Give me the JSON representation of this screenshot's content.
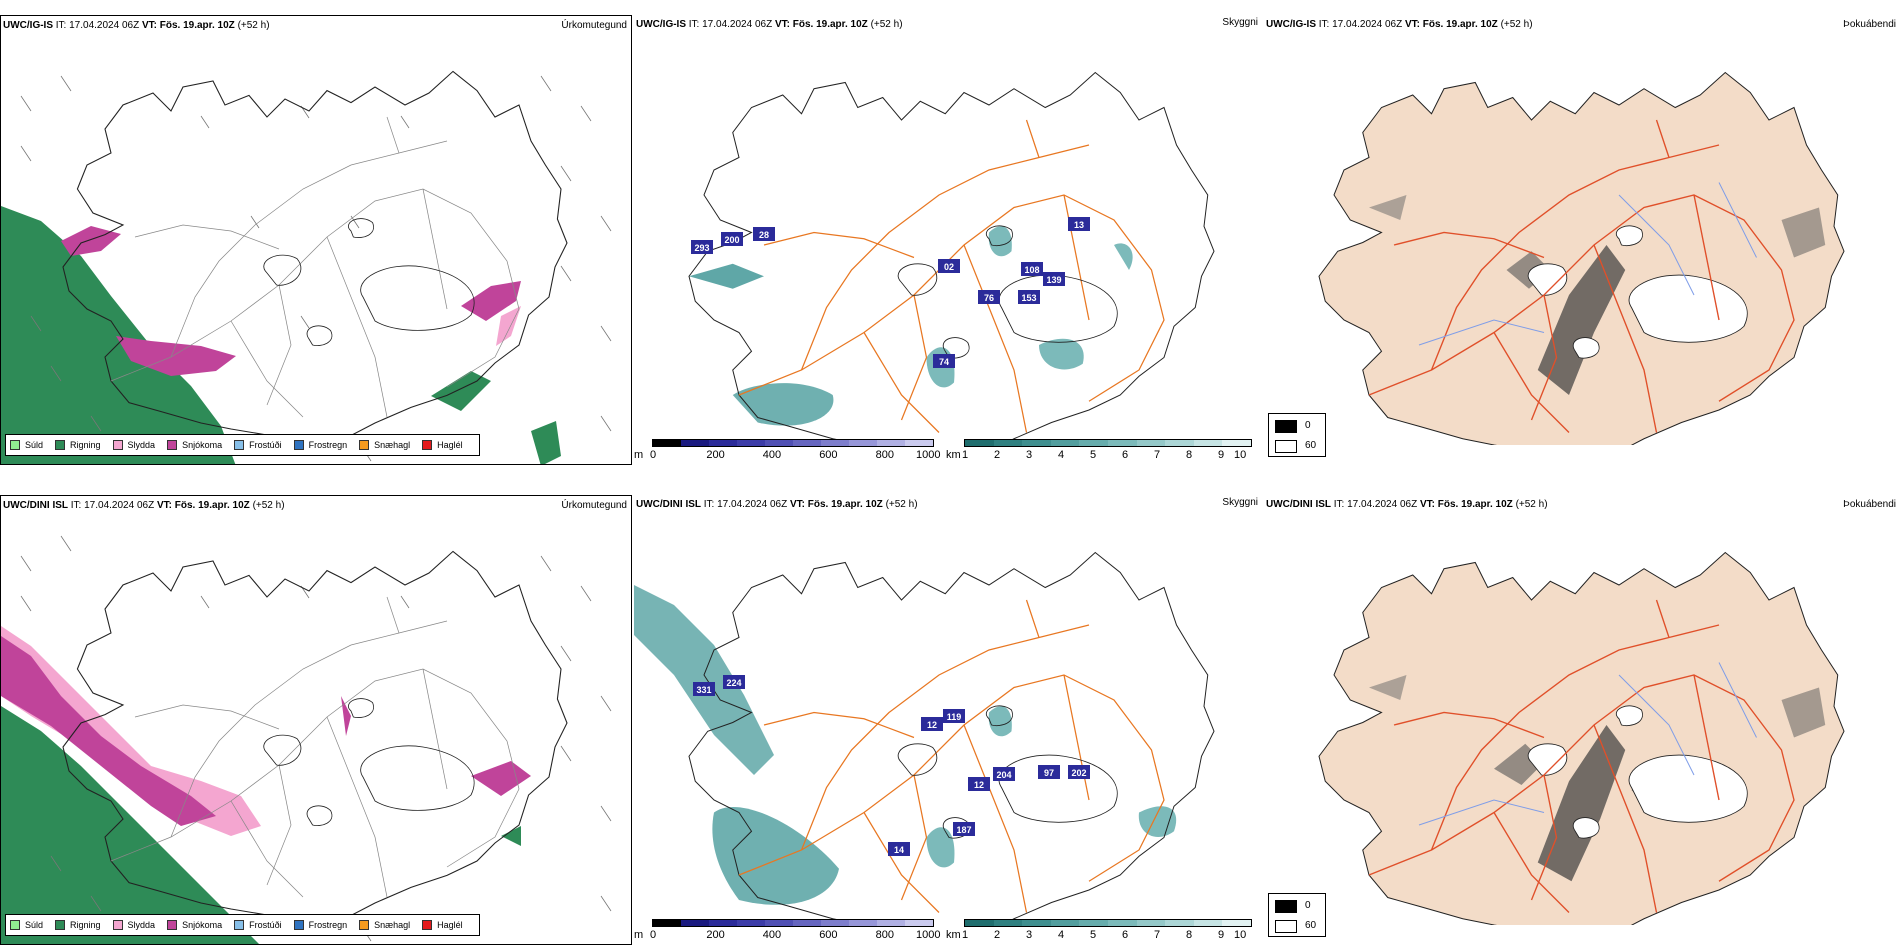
{
  "rows": [
    {
      "model": "UWC/IG-IS",
      "it_label": "IT:",
      "it_value": "17.04.2024 06Z",
      "vt_label": "VT:",
      "vt_value": "Fös. 19.apr. 10Z",
      "lead": "(+52 h)",
      "annotations": [
        "293",
        "200",
        "28",
        "02",
        "74",
        "76",
        "153",
        "108",
        "139",
        "13"
      ]
    },
    {
      "model": "UWC/DINI ISL",
      "it_label": "IT:",
      "it_value": "17.04.2024 06Z",
      "vt_label": "VT:",
      "vt_value": "Fös. 19.apr. 10Z",
      "lead": "(+52 h)",
      "annotations": [
        "331",
        "224",
        "119",
        "12",
        "12",
        "187",
        "204",
        "97",
        "202",
        "14"
      ]
    }
  ],
  "panel_titles": {
    "precip": "Úrkomutegund",
    "ceiling": "Skyggni",
    "fog": "Þokuábendi"
  },
  "precip_legend": [
    {
      "label": "Súld",
      "color": "#90ee90"
    },
    {
      "label": "Rigning",
      "color": "#2e8b57"
    },
    {
      "label": "Slydda",
      "color": "#f4a6d0"
    },
    {
      "label": "Snjókoma",
      "color": "#c0449a"
    },
    {
      "label": "Frostúði",
      "color": "#87bfe8"
    },
    {
      "label": "Frostregn",
      "color": "#2f73c0"
    },
    {
      "label": "Snæhagl",
      "color": "#f59a1e"
    },
    {
      "label": "Haglél",
      "color": "#e31a1c"
    }
  ],
  "ceiling_scale": {
    "unit": "m",
    "ticks": [
      "0",
      "200",
      "400",
      "600",
      "800",
      "1000"
    ],
    "colors": [
      "#000000",
      "#1a1a80",
      "#2b2b9a",
      "#3c3ca8",
      "#5050b4",
      "#6666c0",
      "#7e7ecc",
      "#9696d8",
      "#b0b0e3",
      "#cacaee"
    ]
  },
  "visibility_scale": {
    "unit": "km",
    "ticks": [
      "1",
      "2",
      "3",
      "4",
      "5",
      "6",
      "7",
      "8",
      "9",
      "10"
    ],
    "colors": [
      "#1f6e6e",
      "#2f8080",
      "#3f8f8f",
      "#529e9e",
      "#66acac",
      "#7cbaba",
      "#94c8c8",
      "#acd6d6",
      "#c6e4e4",
      "#e2f2f2"
    ]
  },
  "fog_legend": [
    {
      "label": "0",
      "color": "#000000"
    },
    {
      "label": "60",
      "color": "#ffffff"
    }
  ]
}
